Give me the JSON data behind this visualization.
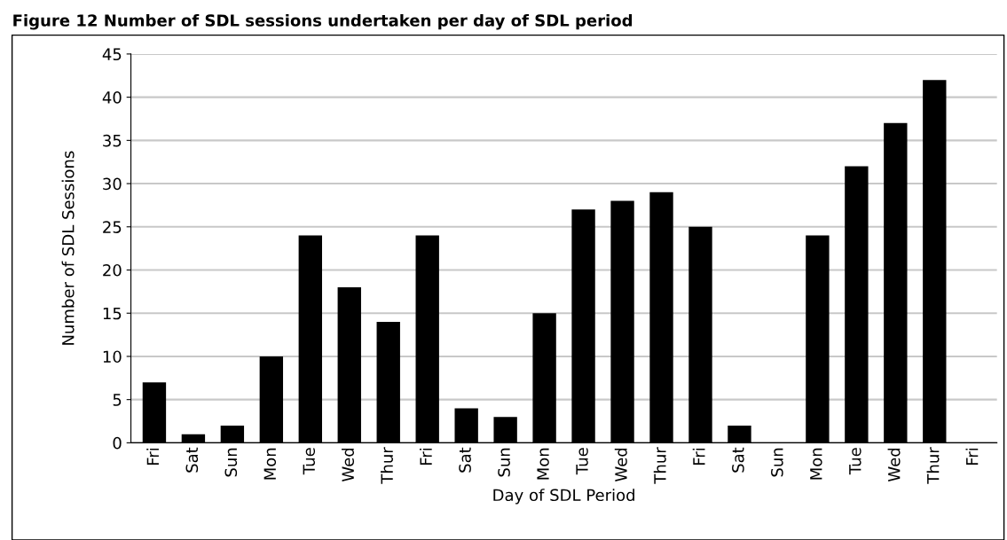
{
  "chart_data": {
    "type": "bar",
    "title": "Figure 12 Number of SDL sessions undertaken per day of SDL period",
    "xlabel": "Day of SDL Period",
    "ylabel": "Number of SDL Sessions",
    "categories": [
      "Fri",
      "Sat",
      "Sun",
      "Mon",
      "Tue",
      "Wed",
      "Thur",
      "Fri",
      "Sat",
      "Sun",
      "Mon",
      "Tue",
      "Wed",
      "Thur",
      "Fri",
      "Sat",
      "Sun",
      "Mon",
      "Tue",
      "Wed",
      "Thur",
      "Fri"
    ],
    "values": [
      7,
      1,
      2,
      10,
      24,
      18,
      14,
      24,
      4,
      3,
      15,
      27,
      28,
      29,
      25,
      2,
      0,
      24,
      32,
      37,
      42,
      0
    ],
    "color": "#000000",
    "ylim": [
      0,
      45
    ],
    "yticks": [
      0,
      5,
      10,
      15,
      20,
      25,
      30,
      35,
      40,
      45
    ],
    "grid": "y"
  }
}
